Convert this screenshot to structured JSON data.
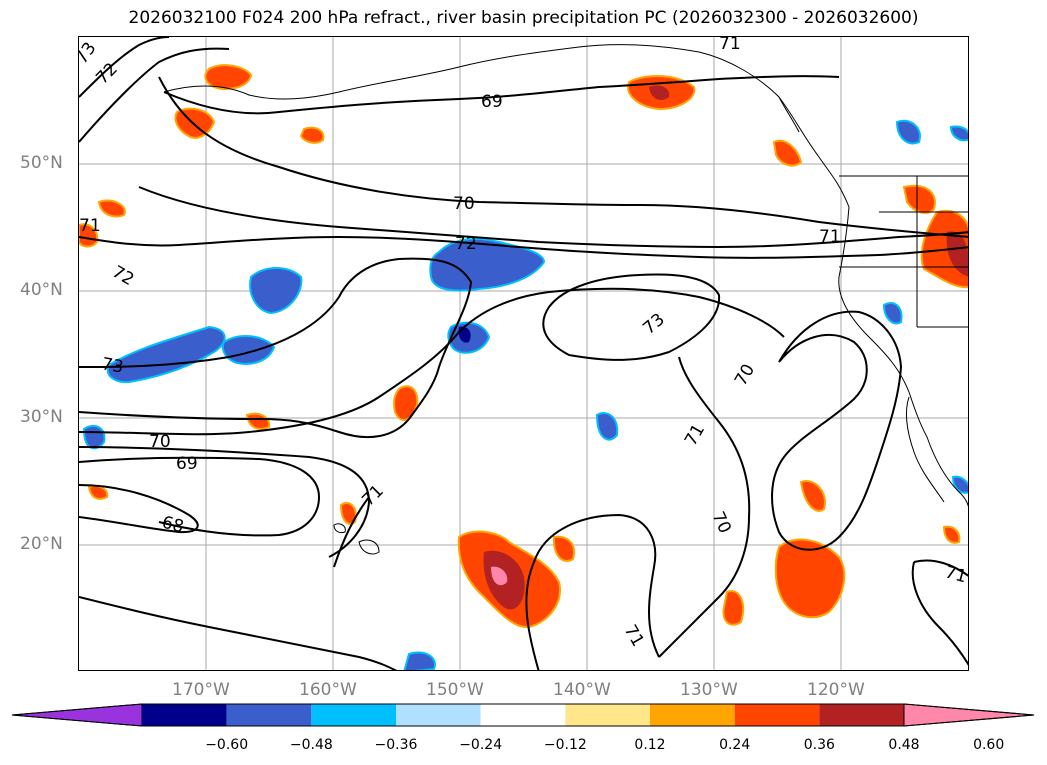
{
  "title": "2026032100 F024 200 hPa refract., river basin precipitation PC (2026032300 - 2026032600)",
  "latitude_labels": [
    "50°N",
    "40°N",
    "30°N",
    "20°N"
  ],
  "longitude_labels": [
    "170°W",
    "160°W",
    "150°W",
    "140°W",
    "130°W",
    "120°W"
  ],
  "contour_labels": [
    "73",
    "72",
    "71",
    "69",
    "70",
    "72",
    "71",
    "71",
    "72",
    "73",
    "73",
    "70",
    "71",
    "70",
    "69",
    "68",
    "71",
    "70",
    "71",
    "71"
  ],
  "colorbar": {
    "ticks": [
      "−0.60",
      "−0.48",
      "−0.36",
      "−0.24",
      "−0.12",
      "0.12",
      "0.24",
      "0.36",
      "0.48",
      "0.60"
    ],
    "colors": [
      "#9933dd",
      "#00008b",
      "#3a5fcd",
      "#00bfff",
      "#b0e0ff",
      "#ffffff",
      "#ffe68a",
      "#ffa500",
      "#ff4500",
      "#b22222",
      "#ff88aa"
    ]
  }
}
